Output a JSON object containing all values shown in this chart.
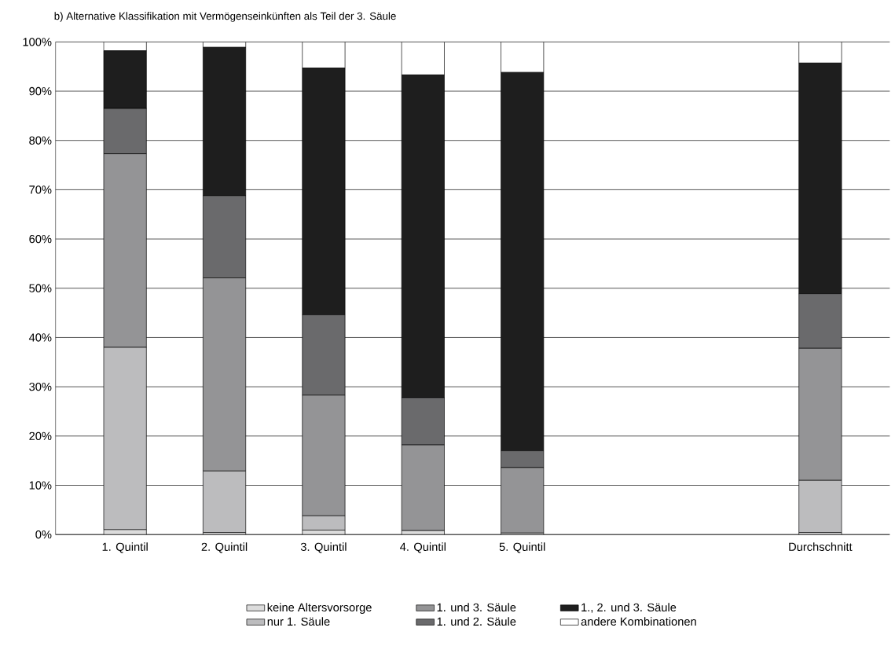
{
  "chart_data": {
    "type": "bar",
    "stacked": true,
    "title": "b) Alternative Klassifikation mit Vermögenseinkünften als Teil der 3. Säule",
    "categories": [
      "1. Quintil",
      "2. Quintil",
      "3. Quintil",
      "4. Quintil",
      "5. Quintil",
      null,
      null,
      "Durchschnitt"
    ],
    "series": [
      {
        "name": "keine Altersvorsorge",
        "color": "#dcdcdc",
        "values": [
          1.0,
          0.4,
          0.9,
          0.8,
          0.3,
          null,
          null,
          0.4
        ]
      },
      {
        "name": "nur 1. Säule",
        "color": "#bcbcbe",
        "values": [
          37.0,
          12.5,
          2.9,
          0.0,
          0.0,
          null,
          null,
          10.6
        ]
      },
      {
        "name": "1. und 3. Säule",
        "color": "#949496",
        "values": [
          39.3,
          39.2,
          24.5,
          17.4,
          13.3,
          null,
          null,
          26.8
        ]
      },
      {
        "name": "1. und 2. Säule",
        "color": "#6a6a6c",
        "values": [
          9.2,
          16.7,
          16.3,
          9.6,
          3.4,
          null,
          null,
          11.1
        ]
      },
      {
        "name": "1., 2. und 3. Säule",
        "color": "#1e1e1e",
        "values": [
          11.7,
          30.1,
          50.1,
          65.5,
          76.8,
          null,
          null,
          46.8
        ]
      },
      {
        "name": "andere Kombinationen",
        "color": "#ffffff",
        "values": [
          1.8,
          1.1,
          5.3,
          6.7,
          6.2,
          null,
          null,
          4.3
        ]
      }
    ],
    "ylim": [
      0,
      100
    ],
    "yticks": [
      {
        "value": 0,
        "label": "0%"
      },
      {
        "value": 10,
        "label": "10%"
      },
      {
        "value": 20,
        "label": "20%"
      },
      {
        "value": 30,
        "label": "30%"
      },
      {
        "value": 40,
        "label": "40%"
      },
      {
        "value": 50,
        "label": "50%"
      },
      {
        "value": 60,
        "label": "60%"
      },
      {
        "value": 70,
        "label": "70%"
      },
      {
        "value": 80,
        "label": "80%"
      },
      {
        "value": 90,
        "label": "90%"
      },
      {
        "value": 100,
        "label": "100%"
      }
    ],
    "grid": "y",
    "legend": "bottom"
  }
}
